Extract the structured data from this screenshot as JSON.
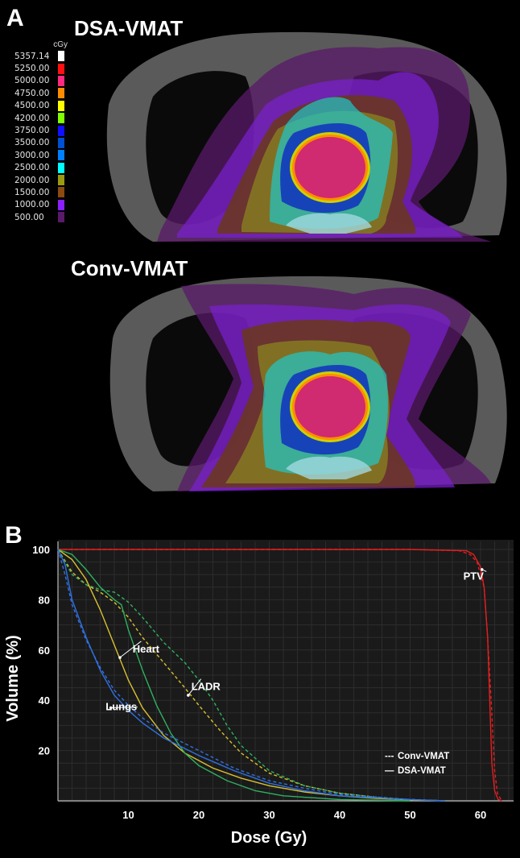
{
  "panel_a": {
    "letter": "A",
    "top_title": "DSA-VMAT",
    "bottom_title": "Conv-VMAT",
    "legend_unit": "cGy",
    "legend": [
      {
        "label": "5357.14",
        "color": "#ffffff"
      },
      {
        "label": "5250.00",
        "color": "#ff1010"
      },
      {
        "label": "5000.00",
        "color": "#ff2a80"
      },
      {
        "label": "4750.00",
        "color": "#ff8c00"
      },
      {
        "label": "4500.00",
        "color": "#ffff00"
      },
      {
        "label": "4200.00",
        "color": "#80ff00"
      },
      {
        "label": "3750.00",
        "color": "#1010ff"
      },
      {
        "label": "3500.00",
        "color": "#0050d0"
      },
      {
        "label": "3000.00",
        "color": "#0080ff"
      },
      {
        "label": "2500.00",
        "color": "#00ffff"
      },
      {
        "label": "2000.00",
        "color": "#9a9a10"
      },
      {
        "label": "1500.00",
        "color": "#8a4a10"
      },
      {
        "label": "1000.00",
        "color": "#8a20ff"
      },
      {
        "label": "500.00",
        "color": "#5a1a6a"
      }
    ]
  },
  "chart_data": {
    "type": "line",
    "panel_letter": "B",
    "title": "",
    "xlabel": "Dose (Gy)",
    "ylabel": "Volume (%)",
    "xlim": [
      0,
      64
    ],
    "ylim": [
      0,
      100
    ],
    "xticks": [
      10,
      20,
      30,
      40,
      50,
      60
    ],
    "yticks": [
      20,
      40,
      60,
      80,
      100
    ],
    "legend": [
      {
        "style": "---",
        "label": "Conv-VMAT"
      },
      {
        "style": "—",
        "label": "DSA-VMAT"
      }
    ],
    "annotations": [
      {
        "text": "PTV",
        "x": 59,
        "y": 88
      },
      {
        "text": "Heart",
        "x": 12.5,
        "y": 59
      },
      {
        "text": "LADR",
        "x": 21,
        "y": 44
      },
      {
        "text": "Lungs",
        "x": 9,
        "y": 36
      }
    ],
    "series": [
      {
        "name": "PTV DSA-VMAT",
        "structure": "PTV",
        "plan": "DSA-VMAT",
        "color": "#e02020",
        "x": [
          0,
          50,
          58,
          59,
          60,
          60.5,
          61,
          61.3,
          61.6,
          62,
          62.5,
          63
        ],
        "y": [
          100,
          100,
          99.5,
          98,
          93,
          85,
          65,
          40,
          15,
          4,
          0.5,
          0
        ]
      },
      {
        "name": "PTV Conv-VMAT",
        "structure": "PTV",
        "plan": "Conv-VMAT",
        "color": "#e02020",
        "x": [
          0,
          50,
          57,
          58.5,
          59.5,
          60.5,
          61,
          61.6,
          62,
          62.4,
          63
        ],
        "y": [
          100,
          100,
          99.5,
          98,
          95,
          85,
          65,
          35,
          12,
          3,
          0
        ]
      },
      {
        "name": "Heart DSA-VMAT",
        "structure": "Heart",
        "plan": "DSA-VMAT",
        "color": "#d8c030",
        "x": [
          0,
          2,
          4,
          6,
          8,
          10,
          12,
          15,
          18,
          22,
          26,
          30,
          35,
          40,
          45,
          50,
          55
        ],
        "y": [
          100,
          96,
          88,
          76,
          62,
          48,
          37,
          26,
          19,
          13,
          9,
          6,
          3.5,
          2,
          1,
          0.4,
          0
        ]
      },
      {
        "name": "Heart Conv-VMAT",
        "structure": "Heart",
        "plan": "Conv-VMAT",
        "color": "#d8c030",
        "x": [
          0,
          2,
          4,
          6,
          8,
          10,
          12,
          15,
          18,
          20,
          23,
          26,
          30,
          35,
          40,
          45,
          50,
          55
        ],
        "y": [
          100,
          91,
          86,
          83,
          79,
          73,
          65,
          55,
          45,
          38,
          28,
          19,
          11,
          6,
          3,
          1.5,
          0.5,
          0
        ]
      },
      {
        "name": "LADR DSA-VMAT",
        "structure": "LADR",
        "plan": "DSA-VMAT",
        "color": "#30b060",
        "x": [
          0,
          2,
          4,
          6,
          8,
          9,
          10,
          12,
          14,
          16,
          18,
          20,
          24,
          28,
          32,
          40,
          50
        ],
        "y": [
          100,
          98,
          92,
          85,
          80,
          78,
          68,
          52,
          38,
          27,
          19,
          14,
          8,
          4,
          2,
          0.5,
          0
        ]
      },
      {
        "name": "LADR Conv-VMAT",
        "structure": "LADR",
        "plan": "Conv-VMAT",
        "color": "#30b060",
        "x": [
          0,
          2,
          4,
          6,
          8,
          10,
          12,
          15,
          18,
          20,
          22,
          24,
          26,
          30,
          35,
          40,
          50
        ],
        "y": [
          100,
          90,
          86,
          84,
          83,
          79,
          73,
          63,
          55,
          48,
          40,
          30,
          22,
          12,
          6,
          3,
          0
        ]
      },
      {
        "name": "Lungs DSA-VMAT",
        "structure": "Lungs",
        "plan": "DSA-VMAT",
        "color": "#3070e0",
        "x": [
          0,
          1,
          2,
          4,
          6,
          8,
          10,
          12,
          15,
          20,
          25,
          30,
          35,
          40,
          50,
          55
        ],
        "y": [
          100,
          94,
          80,
          65,
          52,
          42,
          36,
          31,
          25,
          18,
          12,
          7,
          4,
          2,
          0.5,
          0
        ]
      },
      {
        "name": "Lungs Conv-VMAT",
        "structure": "Lungs",
        "plan": "Conv-VMAT",
        "color": "#3070e0",
        "x": [
          0,
          1,
          2,
          4,
          6,
          8,
          10,
          12,
          15,
          20,
          25,
          30,
          35,
          40,
          50,
          55
        ],
        "y": [
          100,
          90,
          78,
          64,
          53,
          44,
          38,
          33,
          27,
          20,
          13,
          8,
          5,
          2.5,
          0.5,
          0
        ]
      }
    ]
  }
}
